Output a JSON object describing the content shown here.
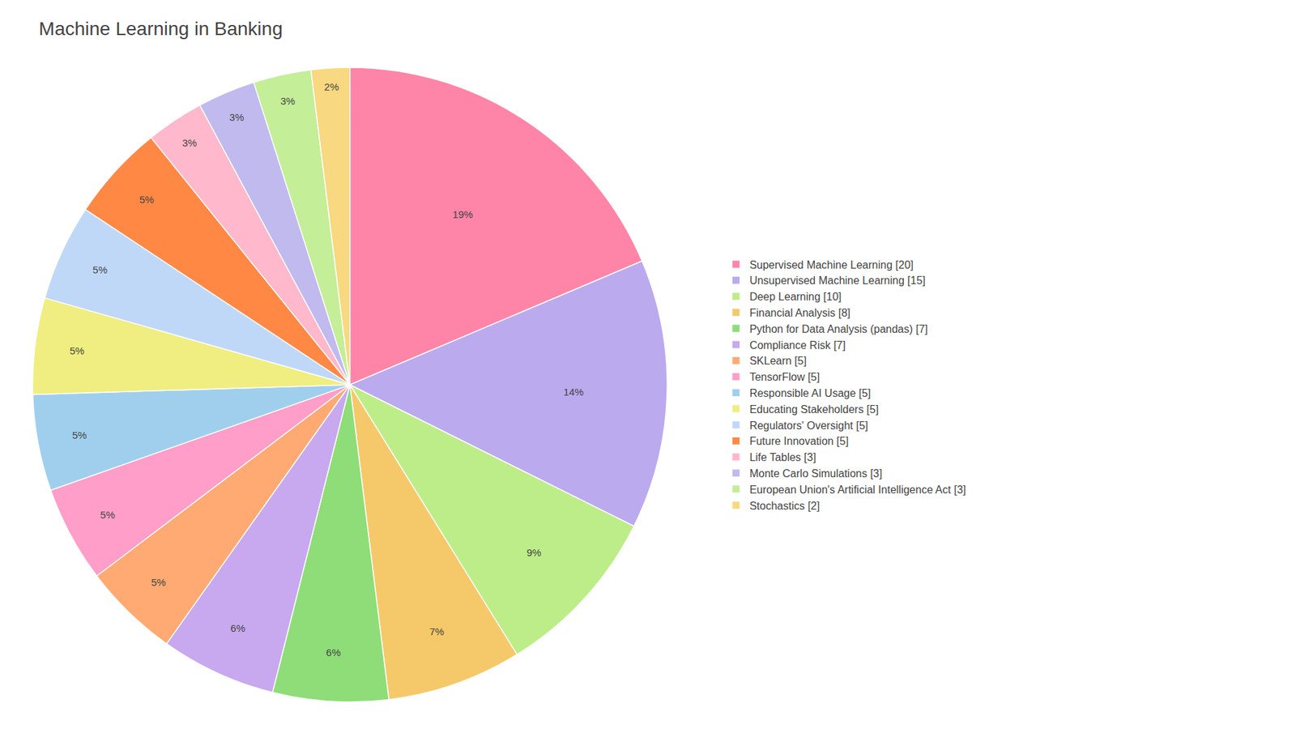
{
  "chart_data": {
    "type": "pie",
    "title": "Machine Learning in Banking",
    "categories": [
      "Supervised Machine Learning [20]",
      "Unsupervised Machine Learning [15]",
      "Deep Learning [10]",
      "Financial Analysis [8]",
      "Python for Data Analysis (pandas) [7]",
      "Compliance Risk [7]",
      "SKLearn [5]",
      "TensorFlow [5]",
      "Responsible AI Usage [5]",
      "Educating Stakeholders [5]",
      "Regulators' Oversight [5]",
      "Future Innovation [5]",
      "Life Tables [3]",
      "Monte Carlo Simulations [3]",
      "European Union's Artificial Intelligence Act [3]",
      "Stochastics [2]"
    ],
    "values": [
      19,
      14,
      9,
      7,
      6,
      6,
      5,
      5,
      5,
      5,
      5,
      5,
      3,
      3,
      3,
      2
    ],
    "value_labels": [
      "19%",
      "14%",
      "9%",
      "7%",
      "6%",
      "6%",
      "5%",
      "5%",
      "5%",
      "5%",
      "5%",
      "5%",
      "3%",
      "3%",
      "3%",
      "2%"
    ],
    "colors": [
      "#FF85A8",
      "#BBAAEE",
      "#BDED88",
      "#F5C96A",
      "#8EDD78",
      "#C8A8EE",
      "#FFAA72",
      "#FF9EC8",
      "#A0CFEE",
      "#F0EE80",
      "#C0D8F8",
      "#FF8844",
      "#FFB8CC",
      "#C0BAEE",
      "#C4EE98",
      "#F8D880"
    ],
    "data_labels": true,
    "legend": "right"
  }
}
